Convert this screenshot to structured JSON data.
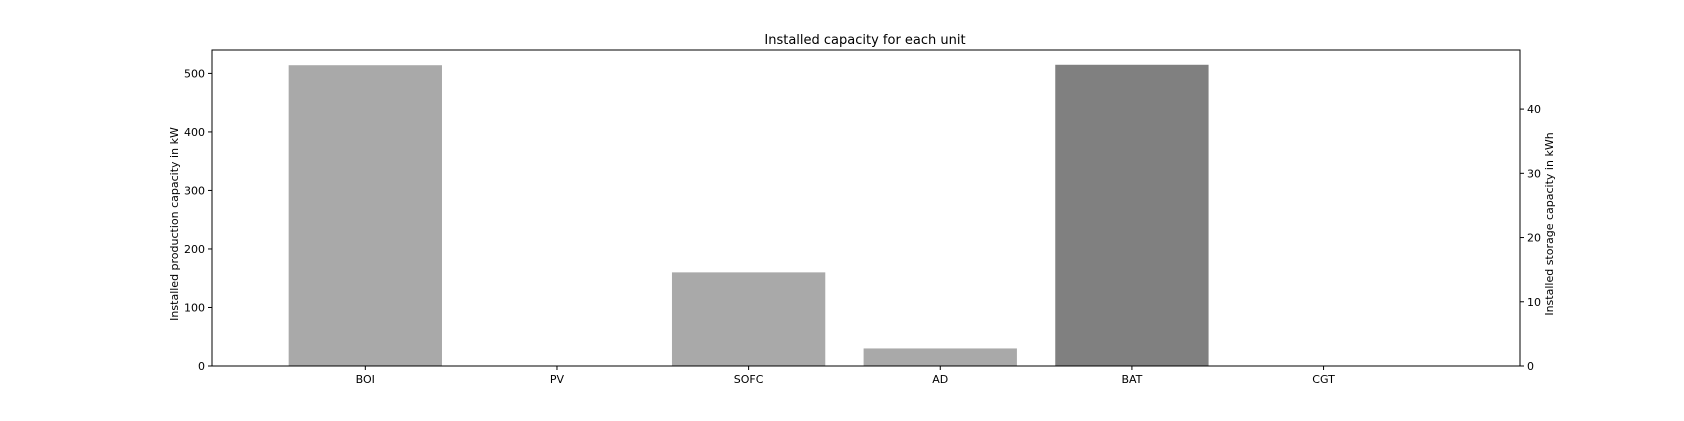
{
  "chart_data": {
    "type": "bar",
    "title": "Installed capacity for each unit",
    "categories": [
      "BOI",
      "PV",
      "SOFC",
      "AD",
      "BAT",
      "CGT"
    ],
    "ylabel_left": "Installed production capacity in kW",
    "ylabel_right": "Installed storage capacity in kWh",
    "ylim_left": [
      0,
      540
    ],
    "ylim_right": [
      0,
      49.2
    ],
    "yticks_left": [
      0,
      100,
      200,
      300,
      400,
      500
    ],
    "yticks_right": [
      0,
      10,
      20,
      30,
      40
    ],
    "series": [
      {
        "axis": "left",
        "color": "#a9a9a9",
        "values": [
          514,
          0,
          160,
          30,
          null,
          0
        ]
      },
      {
        "axis": "right",
        "color": "#808080",
        "values": [
          null,
          null,
          null,
          null,
          46.9,
          null
        ]
      }
    ],
    "grid": false
  }
}
